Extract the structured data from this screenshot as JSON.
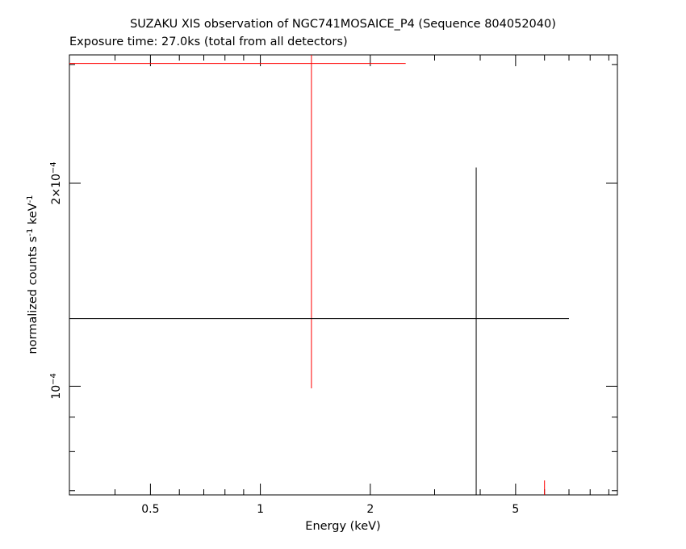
{
  "chart_data": {
    "type": "line",
    "title": "SUZAKU XIS observation of NGC741MOSAICE_P4 (Sequence 804052040)",
    "subtitle": "Exposure time: 27.0ks (total from all detectors)",
    "xlabel": "Energy (keV)",
    "ylabel_parts": {
      "pre": "normalized counts s",
      "sup1": "-1",
      "mid": " keV",
      "sup2": "-1"
    },
    "x_scale": "log",
    "y_scale": "log",
    "xlim": [
      0.3,
      9.5
    ],
    "ylim": [
      6.9e-05,
      0.00031
    ],
    "x_ticks": [
      {
        "value": 0.5,
        "label": "0.5"
      },
      {
        "value": 1,
        "label": "1"
      },
      {
        "value": 2,
        "label": "2"
      },
      {
        "value": 5,
        "label": "5"
      }
    ],
    "x_minor_ticks": [
      0.3,
      0.4,
      0.6,
      0.7,
      0.8,
      0.9,
      3,
      4,
      6,
      7,
      8,
      9
    ],
    "y_ticks": [
      {
        "value": 0.0001,
        "label_html": "10<tspan baseline-shift=\"super\" font-size=\"10\">−4</tspan>",
        "label": "10−4"
      },
      {
        "value": 0.0002,
        "label": "2×10−4"
      }
    ],
    "y_minor_ticks": [
      7e-05,
      8e-05,
      9e-05,
      0.0003
    ],
    "series": [
      {
        "color": "#ff0000",
        "points": [
          {
            "x": 1.38,
            "xlo": 0.3,
            "xhi": 2.5,
            "y": 0.000301,
            "ylo": 9.93e-05,
            "yhi": 0.00031
          }
        ],
        "partial_bars": [
          {
            "x": 6.0,
            "ylo": 6.9e-05,
            "yhi": 7.25e-05
          }
        ]
      },
      {
        "color": "#000000",
        "points": [
          {
            "x": 3.9,
            "xlo": 0.3,
            "xhi": 7.0,
            "y": 0.000126,
            "ylo": 6.9e-05,
            "yhi": 0.000211
          }
        ]
      }
    ]
  }
}
